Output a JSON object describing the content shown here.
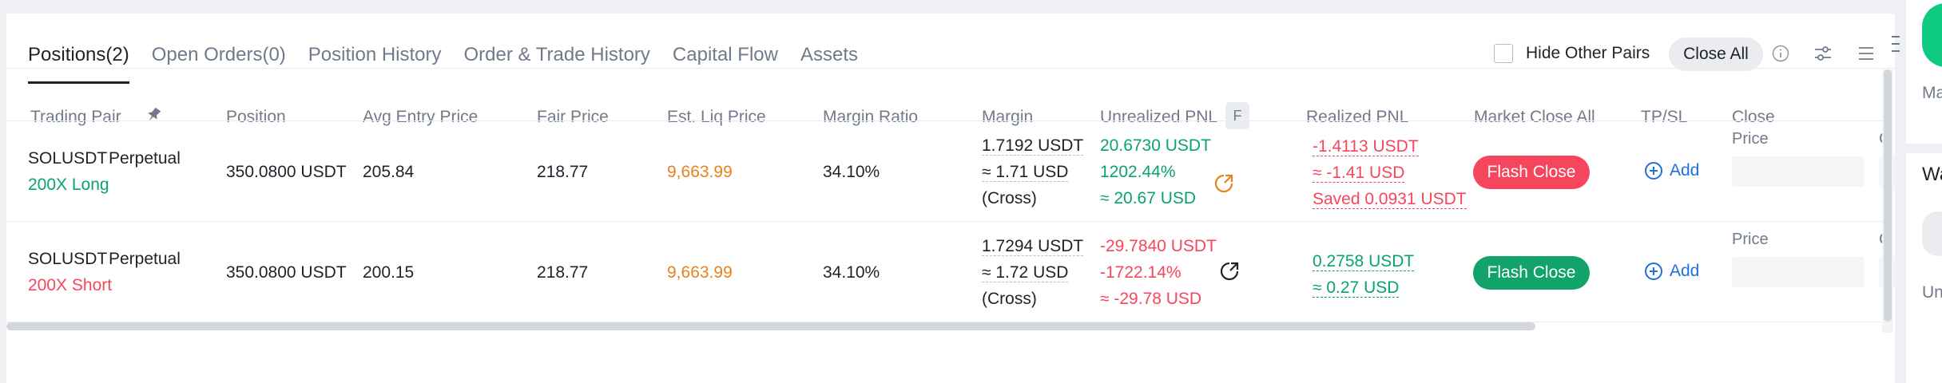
{
  "tabs": [
    {
      "label": "Positions(2)",
      "active": true
    },
    {
      "label": "Open Orders(0)",
      "active": false
    },
    {
      "label": "Position History",
      "active": false
    },
    {
      "label": "Order & Trade History",
      "active": false
    },
    {
      "label": "Capital Flow",
      "active": false
    },
    {
      "label": "Assets",
      "active": false
    }
  ],
  "toolbar": {
    "hide_other_pairs_label": "Hide Other Pairs",
    "hide_other_pairs_checked": false,
    "close_all_label": "Close All",
    "icons": [
      "info-icon",
      "filter-icon",
      "list-icon",
      "more-icon"
    ]
  },
  "columns": {
    "trading_pair": "Trading Pair",
    "position": "Position",
    "avg_entry_price": "Avg Entry Price",
    "fair_price": "Fair Price",
    "est_liq_price": "Est. Liq Price",
    "margin_ratio": "Margin Ratio",
    "margin": "Margin",
    "unrealized_pnl": "Unrealized PNL",
    "unrealized_badge": "F",
    "realized_pnl": "Realized PNL",
    "market_close_all": "Market Close All",
    "tp_sl": "TP/SL",
    "close": "Close"
  },
  "positions": [
    {
      "pair": "SOLUSDT",
      "type": "Perpetual",
      "leverage_side": "200X Long",
      "side": "long",
      "position": "350.0800 USDT",
      "avg_entry_price": "205.84",
      "fair_price": "218.77",
      "est_liq_price": "9,663.99",
      "margin_ratio": "34.10%",
      "margin_usdt": "1.7192 USDT",
      "margin_usd": "≈ 1.71 USD",
      "margin_mode": "(Cross)",
      "unrealized_usdt": "20.6730 USDT",
      "unrealized_pct": "1202.44%",
      "unrealized_usd": "≈ 20.67 USD",
      "share_icon": "share-icon",
      "realized_usdt": "-1.4113 USDT",
      "realized_usd": "≈ -1.41 USD",
      "realized_saved": "Saved 0.0931 USDT",
      "flash_close_label": "Flash Close",
      "add_label": "Add",
      "close_price_label": "Price",
      "clipped_char": "C"
    },
    {
      "pair": "SOLUSDT",
      "type": "Perpetual",
      "leverage_side": "200X Short",
      "side": "short",
      "position": "350.0800 USDT",
      "avg_entry_price": "200.15",
      "fair_price": "218.77",
      "est_liq_price": "9,663.99",
      "margin_ratio": "34.10%",
      "margin_usdt": "1.7294 USDT",
      "margin_usd": "≈ 1.72 USD",
      "margin_mode": "(Cross)",
      "unrealized_usdt": "-29.7840 USDT",
      "unrealized_pct": "-1722.14%",
      "unrealized_usd": "≈ -29.78 USD",
      "share_icon": "share-icon",
      "realized_usdt": "0.2758 USDT",
      "realized_usd": "≈ 0.27 USD",
      "flash_close_label": "Flash Close",
      "add_label": "Add",
      "close_price_label": "Price",
      "clipped_char": "C"
    }
  ],
  "right_panel": {
    "label_1": "Ma",
    "title": "Wa",
    "label_2": "Un"
  },
  "colors": {
    "green": "#0ecb81",
    "red": "#f6465d",
    "orange": "#e8811c",
    "link_blue": "#1f6fdc"
  }
}
